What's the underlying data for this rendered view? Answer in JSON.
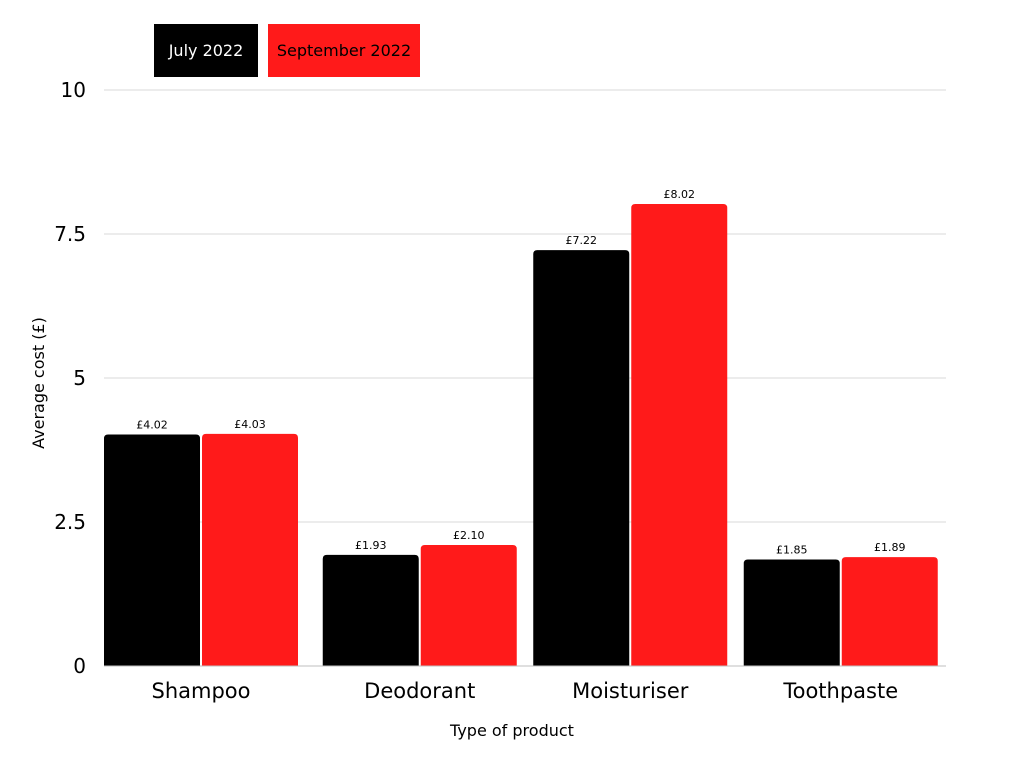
{
  "chart_data": {
    "type": "bar",
    "title": "",
    "xlabel": "Type of product",
    "ylabel": "Average cost (£)",
    "ylim": [
      0,
      10
    ],
    "yticks": [
      "0",
      "2.5",
      "5",
      "7.5",
      "10"
    ],
    "grid": true,
    "legend_placement": "top-left",
    "categories": [
      "Shampoo",
      "Deodorant",
      "Moisturiser",
      "Toothpaste"
    ],
    "series": [
      {
        "name": "July 2022",
        "color": "#000000",
        "text_color": "#ffffff",
        "values": [
          4.02,
          1.93,
          7.22,
          1.85
        ],
        "labels": [
          "£4.02",
          "£1.93",
          "£7.22",
          "£1.85"
        ]
      },
      {
        "name": "September 2022",
        "color": "#ff1a1a",
        "text_color": "#000000",
        "values": [
          4.03,
          2.1,
          8.02,
          1.89
        ],
        "labels": [
          "£4.03",
          "£2.10",
          "£8.02",
          "£1.89"
        ]
      }
    ]
  }
}
